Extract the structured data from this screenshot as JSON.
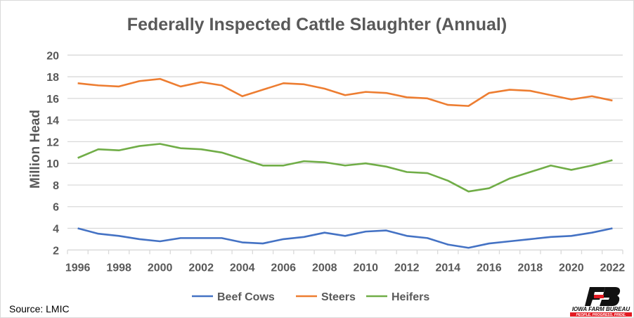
{
  "chart_data": {
    "type": "line",
    "title": "Federally Inspected Cattle Slaughter (Annual)",
    "xlabel": "",
    "ylabel": "Million Head",
    "ylim": [
      2,
      20
    ],
    "yticks": [
      2,
      4,
      6,
      8,
      10,
      12,
      14,
      16,
      18,
      20
    ],
    "grid": true,
    "legend_position": "bottom",
    "x": [
      1996,
      1997,
      1998,
      1999,
      2000,
      2001,
      2002,
      2003,
      2004,
      2005,
      2006,
      2007,
      2008,
      2009,
      2010,
      2011,
      2012,
      2013,
      2014,
      2015,
      2016,
      2017,
      2018,
      2019,
      2020,
      2021,
      2022
    ],
    "xtick_labels": [
      "1996",
      "1998",
      "2000",
      "2002",
      "2004",
      "2006",
      "2008",
      "2010",
      "2012",
      "2014",
      "2016",
      "2018",
      "2020",
      "2022"
    ],
    "series": [
      {
        "name": "Beef Cows",
        "color": "#4472c4",
        "values": [
          4.0,
          3.5,
          3.3,
          3.0,
          2.8,
          3.1,
          3.1,
          3.1,
          2.7,
          2.6,
          3.0,
          3.2,
          3.6,
          3.3,
          3.7,
          3.8,
          3.3,
          3.1,
          2.5,
          2.2,
          2.6,
          2.8,
          3.0,
          3.2,
          3.3,
          3.6,
          4.0
        ]
      },
      {
        "name": "Steers",
        "color": "#ed7d31",
        "values": [
          17.4,
          17.2,
          17.1,
          17.6,
          17.8,
          17.1,
          17.5,
          17.2,
          16.2,
          16.8,
          17.4,
          17.3,
          16.9,
          16.3,
          16.6,
          16.5,
          16.1,
          16.0,
          15.4,
          15.3,
          16.5,
          16.8,
          16.7,
          16.3,
          15.9,
          16.2,
          15.8
        ]
      },
      {
        "name": "Heifers",
        "color": "#70ad47",
        "values": [
          10.5,
          11.3,
          11.2,
          11.6,
          11.8,
          11.4,
          11.3,
          11.0,
          10.4,
          9.8,
          9.8,
          10.2,
          10.1,
          9.8,
          10.0,
          9.7,
          9.2,
          9.1,
          8.4,
          7.4,
          7.7,
          8.6,
          9.2,
          9.8,
          9.4,
          9.8,
          10.3
        ]
      }
    ]
  },
  "source": "Source: LMIC",
  "logo": {
    "name": "IOWA FARM BUREAU",
    "tagline": "PEOPLE. PROGRESS. PRIDE."
  }
}
